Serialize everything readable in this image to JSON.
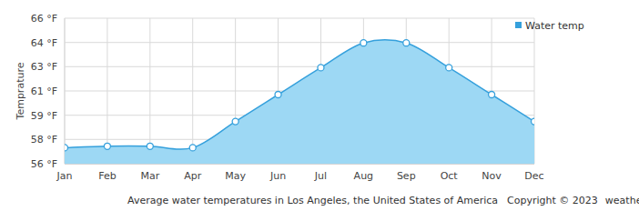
{
  "chart_data": {
    "type": "area",
    "title": "Average water temperatures in Los Angeles, the United States of America",
    "annotations": [
      "Copyright © 2023",
      "weather-and-climate.com"
    ],
    "ylabel": "Temprature",
    "categories": [
      "Jan",
      "Feb",
      "Mar",
      "Apr",
      "May",
      "Jun",
      "Jul",
      "Aug",
      "Sep",
      "Oct",
      "Nov",
      "Dec"
    ],
    "series": [
      {
        "name": "Water temp",
        "color": "#35a0dc",
        "marker": "circle",
        "values": [
          57.1,
          57.2,
          57.2,
          57.1,
          58.9,
          60.75,
          62.6,
          64.3,
          64.3,
          62.6,
          60.75,
          58.9
        ]
      }
    ],
    "ylim": [
      56,
      66
    ],
    "yticks": [
      {
        "value": 56,
        "label": "56 °F"
      },
      {
        "value": 57.67,
        "label": "58 °F"
      },
      {
        "value": 59.33,
        "label": "59 °F"
      },
      {
        "value": 61,
        "label": "61 °F"
      },
      {
        "value": 62.67,
        "label": "63 °F"
      },
      {
        "value": 64.33,
        "label": "64 °F"
      },
      {
        "value": 66,
        "label": "66 °F"
      }
    ],
    "grid": true,
    "legend": "top-right"
  }
}
